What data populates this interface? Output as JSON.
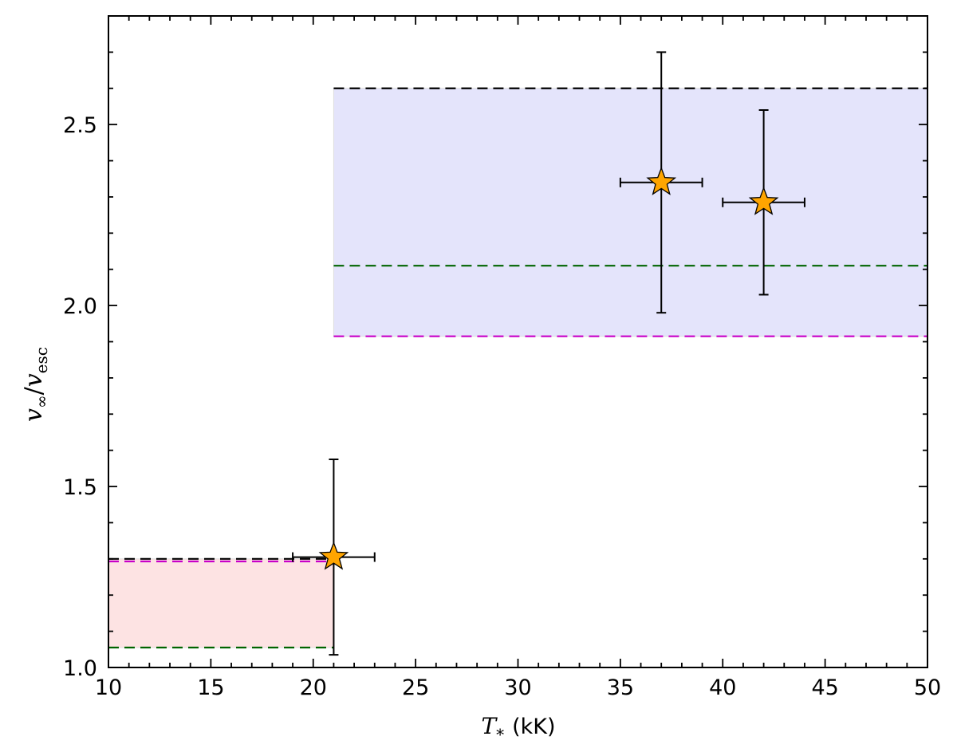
{
  "chart_data": {
    "type": "scatter",
    "title": "",
    "xlabel": {
      "sym": "T",
      "sub": "*",
      "unit": "(kK)"
    },
    "ylabel": {
      "num": "v",
      "num_sub": "∞",
      "sep": "/",
      "den": "v",
      "den_sub": "esc"
    },
    "xlim": [
      10,
      50
    ],
    "ylim": [
      1.0,
      2.8
    ],
    "xticks": [
      10,
      15,
      20,
      25,
      30,
      35,
      40,
      45,
      50
    ],
    "xtick_labels": [
      "10",
      "15",
      "20",
      "25",
      "30",
      "35",
      "40",
      "45",
      "50"
    ],
    "yticks": [
      1.0,
      1.5,
      2.0,
      2.5
    ],
    "ytick_labels": [
      "1.0",
      "1.5",
      "2.0",
      "2.5"
    ],
    "x_minor_step": 1,
    "y_minor_step": 0.1,
    "grid": false,
    "points": [
      {
        "x": 21,
        "y": 1.305,
        "xerr": 2,
        "yerr_low": 0.27,
        "yerr_high": 0.27
      },
      {
        "x": 37,
        "y": 2.34,
        "xerr": 2,
        "yerr_low": 0.36,
        "yerr_high": 0.36
      },
      {
        "x": 42,
        "y": 2.285,
        "xerr": 2,
        "yerr_low": 0.255,
        "yerr_high": 0.255
      }
    ],
    "shaded_regions": [
      {
        "x": [
          10,
          21
        ],
        "y": [
          1.055,
          1.3
        ],
        "color": "#fde3e3"
      },
      {
        "x": [
          21,
          50
        ],
        "y": [
          1.915,
          2.6
        ],
        "color": "#e4e4fb"
      }
    ],
    "dashed_lines": [
      {
        "x": [
          10,
          21
        ],
        "y": 1.3,
        "color": "#000000"
      },
      {
        "x": [
          10,
          21
        ],
        "y": 1.293,
        "color": "#c800c8"
      },
      {
        "x": [
          10,
          21
        ],
        "y": 1.055,
        "color": "#006400"
      },
      {
        "x": [
          21,
          50
        ],
        "y": 2.6,
        "color": "#000000"
      },
      {
        "x": [
          21,
          50
        ],
        "y": 2.11,
        "color": "#006400"
      },
      {
        "x": [
          21,
          50
        ],
        "y": 1.915,
        "color": "#c800c8"
      }
    ],
    "marker": {
      "shape": "star",
      "fill": "#ffa500",
      "edge": "#000000"
    }
  }
}
